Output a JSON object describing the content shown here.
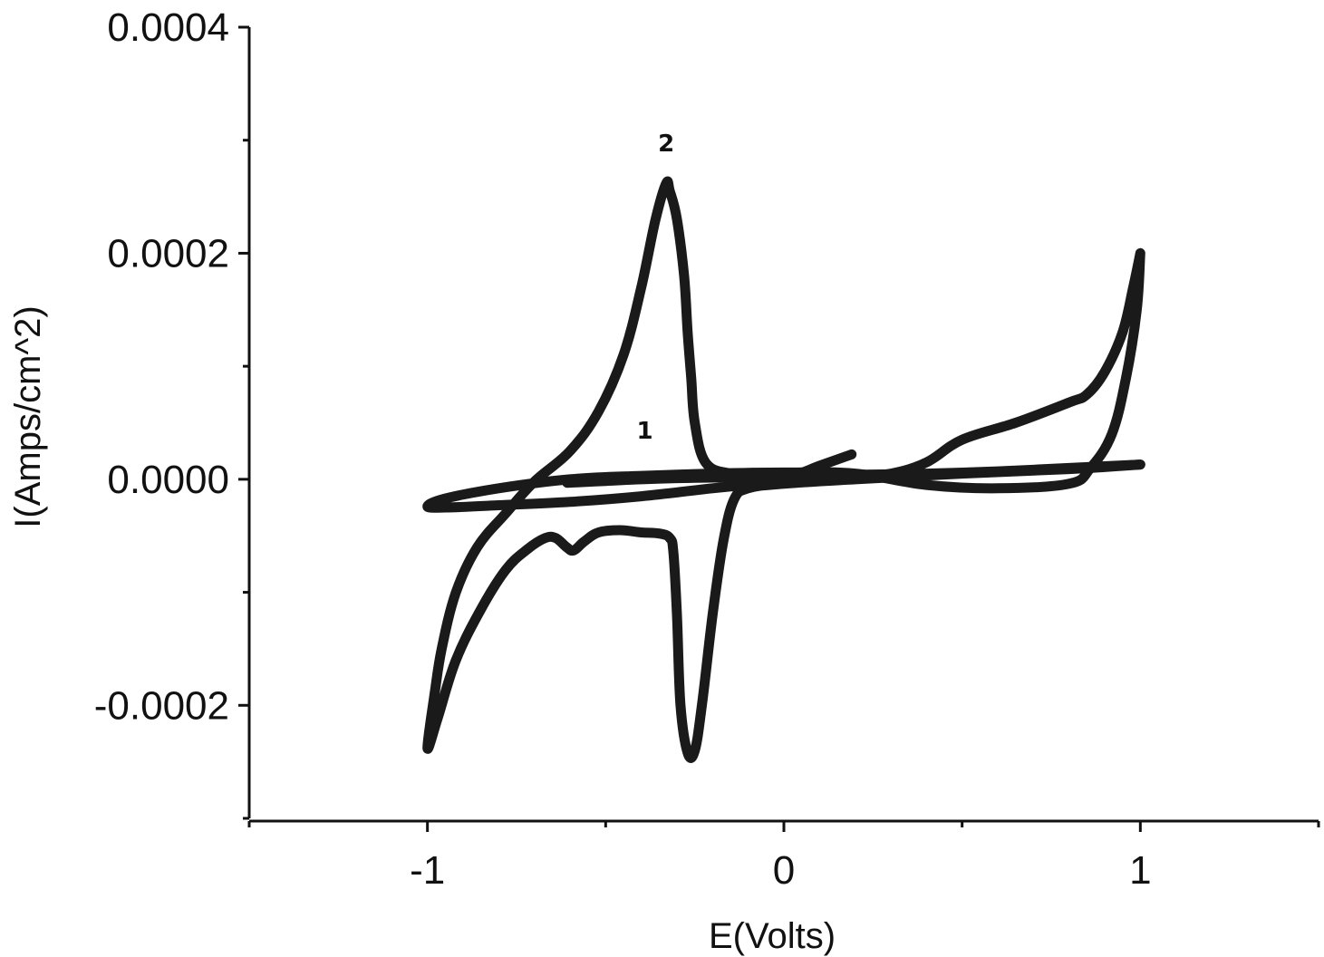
{
  "chart_data": {
    "type": "line",
    "title": "",
    "xlabel": "E(Volts)",
    "ylabel": "I(Amps/cm^2)",
    "xlim": [
      -1.5,
      1.5
    ],
    "ylim": [
      -0.0003,
      0.0004
    ],
    "x_ticks": [
      {
        "value": -1,
        "label": "-1"
      },
      {
        "value": 0,
        "label": "0"
      },
      {
        "value": 1,
        "label": "1"
      }
    ],
    "x_minor_ticks": [
      -1.5,
      -0.5,
      0.5,
      1.5
    ],
    "y_ticks": [
      {
        "value": 0.0004,
        "label": "0.0004"
      },
      {
        "value": 0.0002,
        "label": "0.0002"
      },
      {
        "value": 0.0,
        "label": "0.0000"
      },
      {
        "value": -0.0002,
        "label": "-0.0002"
      }
    ],
    "y_minor_ticks": [
      0.0003,
      0.0001,
      -0.0001,
      -0.0003
    ],
    "grid": false,
    "annotations": [
      {
        "text": "2",
        "x": -0.33,
        "y": 0.00029
      },
      {
        "text": "1",
        "x": -0.39,
        "y": 3.6e-05
      }
    ],
    "series": [
      {
        "color": "#1a1a1a",
        "x": [
          0.19,
          0.1,
          0.03,
          -0.05,
          -0.15,
          -0.22,
          -0.25,
          -0.26,
          -0.27,
          -0.28,
          -0.3,
          -0.32,
          -0.33,
          -0.36,
          -0.4,
          -0.45,
          -0.52,
          -0.6,
          -0.7,
          -0.78,
          -0.86,
          -0.92,
          -0.96,
          -0.98,
          -1.0,
          -0.97,
          -0.92,
          -0.85,
          -0.78,
          -0.72,
          -0.67,
          -0.64,
          -0.61,
          -0.59,
          -0.56,
          -0.52,
          -0.46,
          -0.4,
          -0.35,
          -0.32,
          -0.31,
          -0.3,
          -0.29,
          -0.27,
          -0.25,
          -0.23,
          -0.2,
          -0.17,
          -0.14,
          -0.1,
          0.0,
          0.2,
          0.5,
          0.8,
          1.0
        ],
        "y": [
          2.2e-05,
          1.2e-05,
          4e-06,
          3e-06,
          5e-06,
          1.5e-05,
          5e-05,
          9e-05,
          0.00013,
          0.00018,
          0.00023,
          0.000255,
          0.000262,
          0.00023,
          0.00017,
          0.00011,
          6e-05,
          2.5e-05,
          -2e-06,
          -3e-05,
          -6e-05,
          -0.0001,
          -0.00015,
          -0.00019,
          -0.000238,
          -0.00021,
          -0.00016,
          -0.000115,
          -8e-05,
          -6.2e-05,
          -5.2e-05,
          -5.2e-05,
          -6e-05,
          -6.3e-05,
          -5.5e-05,
          -4.7e-05,
          -4.5e-05,
          -4.7e-05,
          -4.8e-05,
          -5.2e-05,
          -6.5e-05,
          -0.00012,
          -0.0002,
          -0.000242,
          -0.00024,
          -0.0002,
          -0.00012,
          -5.5e-05,
          -1.8e-05,
          -8e-06,
          -4e-06,
          0.0,
          5e-06,
          9e-06,
          1.3e-05
        ]
      },
      {
        "color": "#1a1a1a",
        "x": [
          1.0,
          0.98,
          0.95,
          0.9,
          0.85,
          0.8,
          0.65,
          0.5,
          0.4,
          0.3,
          0.2,
          0.0,
          -0.2,
          -0.4,
          -0.6,
          -0.8,
          -0.95,
          -1.0,
          -0.95,
          -0.8,
          -0.6,
          -0.4,
          -0.2,
          0.0,
          0.2,
          0.4,
          0.6,
          0.8,
          0.86,
          0.92,
          0.96,
          0.99,
          1.0
        ],
        "y": [
          0.0002,
          0.00017,
          0.00013,
          9.5e-05,
          7.5e-05,
          6.8e-05,
          5e-05,
          3.5e-05,
          1.5e-05,
          5e-06,
          3e-06,
          -2e-06,
          -8e-06,
          -1.5e-05,
          -2e-05,
          -2.3e-05,
          -2.5e-05,
          -2.4e-05,
          -1.7e-05,
          -8e-06,
          0.0,
          3e-06,
          5e-06,
          6e-06,
          5e-06,
          -5e-06,
          -8e-06,
          -4e-06,
          1e-05,
          4e-05,
          9e-05,
          0.00015,
          0.0002
        ]
      },
      {
        "color": "#1a1a1a",
        "x": [
          -0.6,
          -0.6,
          -0.5,
          -0.4,
          -0.3,
          -0.2,
          -0.1,
          0.0,
          0.2,
          0.4,
          0.6,
          0.8,
          1.0
        ],
        "y": [
          -3e-06,
          -3e-06,
          -1.5e-06,
          0.0,
          1e-06,
          1.5e-06,
          2e-06,
          3e-06,
          4e-06,
          5e-06,
          7e-06,
          1e-05,
          1.3e-05
        ]
      }
    ]
  }
}
